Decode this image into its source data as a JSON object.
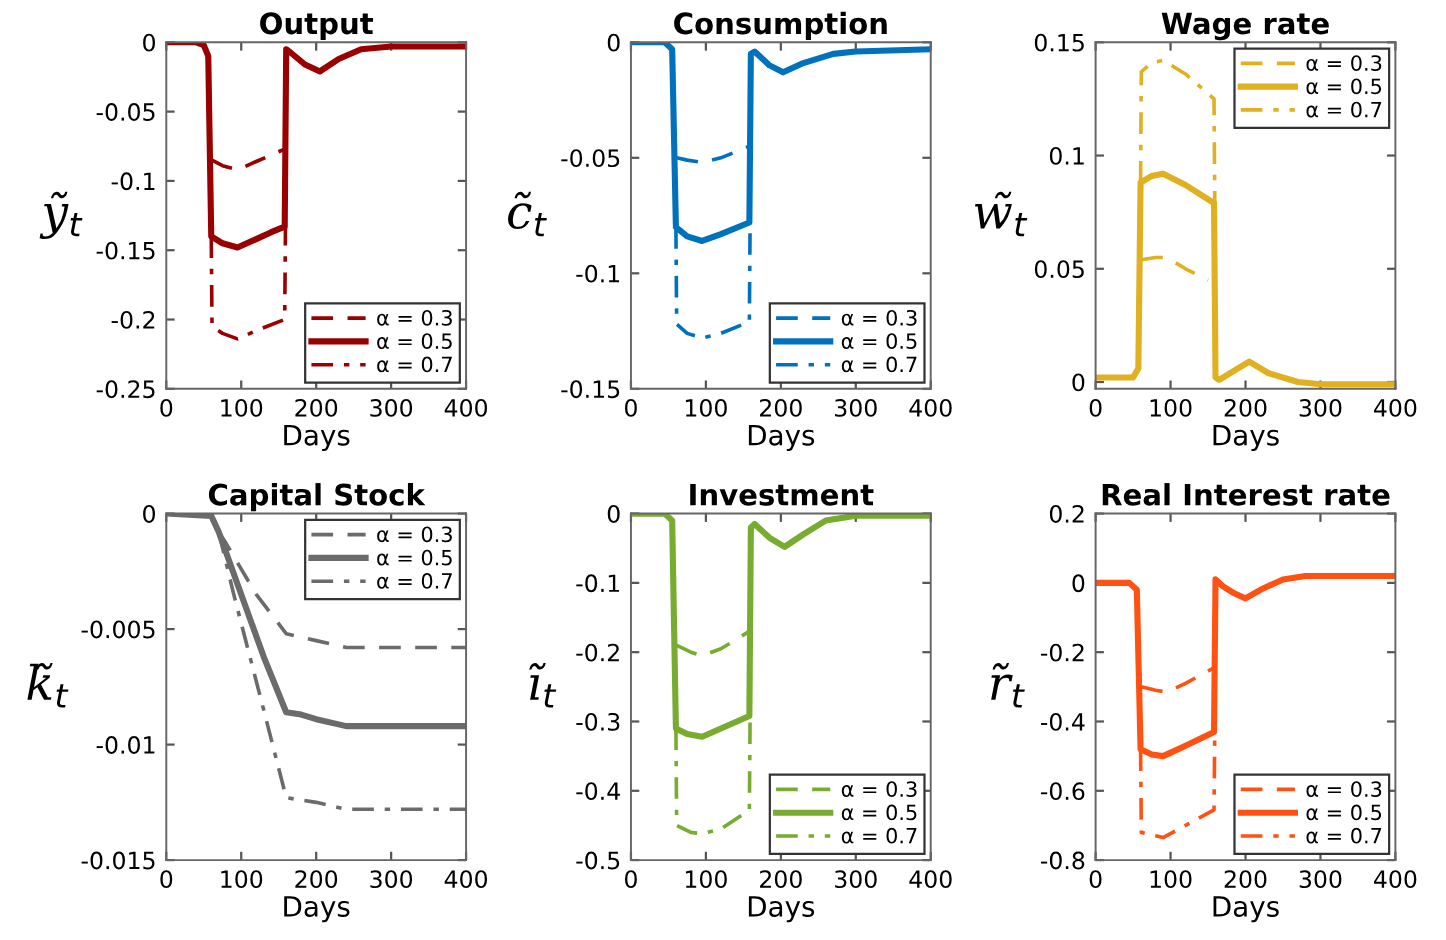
{
  "chart_data": [
    {
      "type": "line",
      "title": "Output",
      "xlabel": "Days",
      "ylabel": "ỹ$_{t}$",
      "xlim": [
        0,
        400
      ],
      "xticks": [
        0,
        100,
        200,
        300,
        400
      ],
      "ylim": [
        -0.25,
        0
      ],
      "yticks": [
        -0.25,
        -0.2,
        -0.15,
        -0.1,
        -0.05,
        0
      ],
      "legend": "bottom right",
      "grid": false,
      "series": [
        {
          "name": "α = 0.3",
          "color": "#990000",
          "line_style": "dashed",
          "x": [
            61,
            75,
            95,
            120,
            158
          ],
          "values": [
            -0.085,
            -0.089,
            -0.092,
            -0.086,
            -0.077
          ]
        },
        {
          "name": "α = 0.5",
          "color": "#990000",
          "line_style": "solid",
          "x": [
            0,
            40,
            50,
            56,
            60,
            75,
            95,
            120,
            140,
            158,
            160,
            165,
            185,
            205,
            230,
            260,
            300,
            400
          ],
          "values": [
            0,
            0,
            -0.002,
            -0.01,
            -0.14,
            -0.145,
            -0.148,
            -0.142,
            -0.137,
            -0.133,
            -0.005,
            -0.007,
            -0.016,
            -0.021,
            -0.012,
            -0.005,
            -0.003,
            -0.003
          ]
        },
        {
          "name": "α = 0.7",
          "color": "#990000",
          "line_style": "dashdot",
          "x": [
            60,
            61,
            75,
            95,
            120,
            158,
            159
          ],
          "values": [
            -0.14,
            -0.205,
            -0.21,
            -0.214,
            -0.208,
            -0.2,
            -0.133
          ]
        }
      ]
    },
    {
      "type": "line",
      "title": "Consumption",
      "xlabel": "Days",
      "ylabel": "c̃$_{t}$",
      "xlim": [
        0,
        400
      ],
      "xticks": [
        0,
        100,
        200,
        300,
        400
      ],
      "ylim": [
        -0.15,
        0
      ],
      "yticks": [
        -0.15,
        -0.1,
        -0.05,
        0
      ],
      "legend": "bottom right",
      "grid": false,
      "series": [
        {
          "name": "α = 0.3",
          "color": "#0072bd",
          "line_style": "dashed",
          "x": [
            61,
            75,
            95,
            120,
            158
          ],
          "values": [
            -0.05,
            -0.051,
            -0.052,
            -0.05,
            -0.045
          ]
        },
        {
          "name": "α = 0.5",
          "color": "#0072bd",
          "line_style": "solid",
          "x": [
            0,
            45,
            55,
            60,
            75,
            95,
            120,
            158,
            160,
            165,
            185,
            203,
            230,
            270,
            300,
            400
          ],
          "values": [
            0,
            0,
            -0.003,
            -0.08,
            -0.084,
            -0.086,
            -0.083,
            -0.078,
            -0.005,
            -0.004,
            -0.01,
            -0.013,
            -0.009,
            -0.005,
            -0.004,
            -0.003
          ]
        },
        {
          "name": "α = 0.7",
          "color": "#0072bd",
          "line_style": "dashdot",
          "x": [
            60,
            61,
            75,
            95,
            120,
            158,
            159
          ],
          "values": [
            -0.08,
            -0.122,
            -0.126,
            -0.128,
            -0.126,
            -0.121,
            -0.078
          ]
        }
      ]
    },
    {
      "type": "line",
      "title": "Wage rate",
      "xlabel": "Days",
      "ylabel": "w̃$_{t}$",
      "xlim": [
        0,
        400
      ],
      "xticks": [
        0,
        100,
        200,
        300,
        400
      ],
      "ylim": [
        -0.003,
        0.15
      ],
      "yticks": [
        0,
        0.05,
        0.1,
        0.15
      ],
      "legend": "top right",
      "grid": false,
      "series": [
        {
          "name": "α = 0.3",
          "color": "#e0b020",
          "line_style": "dashed",
          "x": [
            61,
            80,
            95,
            120,
            150
          ],
          "values": [
            0.054,
            0.055,
            0.055,
            0.05,
            0.045
          ]
        },
        {
          "name": "α = 0.5",
          "color": "#e0b020",
          "line_style": "solid",
          "x": [
            0,
            50,
            57,
            60,
            75,
            90,
            120,
            158,
            160,
            165,
            185,
            205,
            230,
            270,
            300,
            400
          ],
          "values": [
            0.002,
            0.002,
            0.006,
            0.088,
            0.091,
            0.092,
            0.087,
            0.079,
            0.002,
            0.001,
            0.005,
            0.009,
            0.004,
            0,
            -0.001,
            -0.001
          ]
        },
        {
          "name": "α = 0.7",
          "color": "#e0b020",
          "line_style": "dashdot",
          "x": [
            60,
            61,
            75,
            90,
            120,
            158,
            159
          ],
          "values": [
            0.088,
            0.137,
            0.141,
            0.142,
            0.136,
            0.125,
            0.079
          ]
        }
      ]
    },
    {
      "type": "line",
      "title": "Capital Stock",
      "xlabel": "Days",
      "ylabel": "k̃$_{t}$",
      "xlim": [
        0,
        400
      ],
      "xticks": [
        0,
        100,
        200,
        300,
        400
      ],
      "ylim": [
        -0.015,
        0
      ],
      "yticks": [
        -0.015,
        -0.01,
        -0.005,
        0
      ],
      "legend": "top right",
      "grid": false,
      "series": [
        {
          "name": "α = 0.3",
          "color": "#6b6b6b",
          "line_style": "dashed",
          "x": [
            70,
            80,
            120,
            160,
            200,
            240,
            400
          ],
          "values": [
            -0.0008,
            -0.0013,
            -0.0035,
            -0.0052,
            -0.0055,
            -0.0058,
            -0.0058
          ]
        },
        {
          "name": "α = 0.5",
          "color": "#6b6b6b",
          "line_style": "solid",
          "x": [
            0,
            60,
            70,
            100,
            130,
            160,
            180,
            200,
            240,
            400
          ],
          "values": [
            0,
            -0.0001,
            -0.0008,
            -0.0035,
            -0.0062,
            -0.0086,
            -0.0087,
            -0.0089,
            -0.0092,
            -0.0092
          ]
        },
        {
          "name": "α = 0.7",
          "color": "#6b6b6b",
          "line_style": "dashdot",
          "x": [
            70,
            90,
            130,
            160,
            200,
            240,
            400
          ],
          "values": [
            -0.0008,
            -0.0035,
            -0.0085,
            -0.0123,
            -0.0125,
            -0.0128,
            -0.0128
          ]
        }
      ]
    },
    {
      "type": "line",
      "title": "Investment",
      "xlabel": "Days",
      "ylabel": "ĩ$_{t}$",
      "xlim": [
        0,
        400
      ],
      "xticks": [
        0,
        100,
        200,
        300,
        400
      ],
      "ylim": [
        -0.5,
        0
      ],
      "yticks": [
        -0.5,
        -0.4,
        -0.3,
        -0.2,
        -0.1,
        0
      ],
      "legend": "bottom right",
      "grid": false,
      "series": [
        {
          "name": "α = 0.3",
          "color": "#77ac30",
          "line_style": "dashed",
          "x": [
            61,
            80,
            95,
            120,
            158
          ],
          "values": [
            -0.19,
            -0.2,
            -0.205,
            -0.195,
            -0.17
          ]
        },
        {
          "name": "α = 0.5",
          "color": "#77ac30",
          "line_style": "solid",
          "x": [
            0,
            45,
            55,
            60,
            75,
            95,
            120,
            158,
            160,
            165,
            185,
            205,
            230,
            260,
            300,
            400
          ],
          "values": [
            0,
            0,
            -0.01,
            -0.31,
            -0.318,
            -0.322,
            -0.31,
            -0.292,
            -0.02,
            -0.015,
            -0.035,
            -0.048,
            -0.03,
            -0.01,
            -0.003,
            -0.003
          ]
        },
        {
          "name": "α = 0.7",
          "color": "#77ac30",
          "line_style": "dashdot",
          "x": [
            60,
            61,
            80,
            95,
            120,
            158,
            159
          ],
          "values": [
            -0.31,
            -0.45,
            -0.46,
            -0.462,
            -0.455,
            -0.428,
            -0.292
          ]
        }
      ]
    },
    {
      "type": "line",
      "title": "Real Interest rate",
      "xlabel": "Days",
      "ylabel": "r̃$_{t}$",
      "xlim": [
        0,
        400
      ],
      "xticks": [
        0,
        100,
        200,
        300,
        400
      ],
      "ylim": [
        -0.8,
        0.2
      ],
      "yticks": [
        -0.8,
        -0.6,
        -0.4,
        -0.2,
        0,
        0.2
      ],
      "legend": "bottom right",
      "grid": false,
      "series": [
        {
          "name": "α = 0.3",
          "color": "#ff5212",
          "line_style": "dashed",
          "x": [
            61,
            80,
            95,
            120,
            158
          ],
          "values": [
            -0.3,
            -0.31,
            -0.315,
            -0.29,
            -0.245
          ]
        },
        {
          "name": "α = 0.5",
          "color": "#ff5212",
          "line_style": "solid",
          "x": [
            0,
            45,
            55,
            60,
            75,
            90,
            120,
            158,
            160,
            170,
            185,
            200,
            220,
            250,
            280,
            400
          ],
          "values": [
            0,
            0,
            -0.02,
            -0.48,
            -0.495,
            -0.5,
            -0.47,
            -0.43,
            0.01,
            -0.01,
            -0.03,
            -0.045,
            -0.02,
            0.01,
            0.02,
            0.02
          ]
        },
        {
          "name": "α = 0.7",
          "color": "#ff5212",
          "line_style": "dashdot",
          "x": [
            60,
            61,
            80,
            90,
            120,
            158,
            159
          ],
          "values": [
            -0.48,
            -0.72,
            -0.73,
            -0.735,
            -0.7,
            -0.655,
            -0.43
          ]
        }
      ]
    }
  ]
}
